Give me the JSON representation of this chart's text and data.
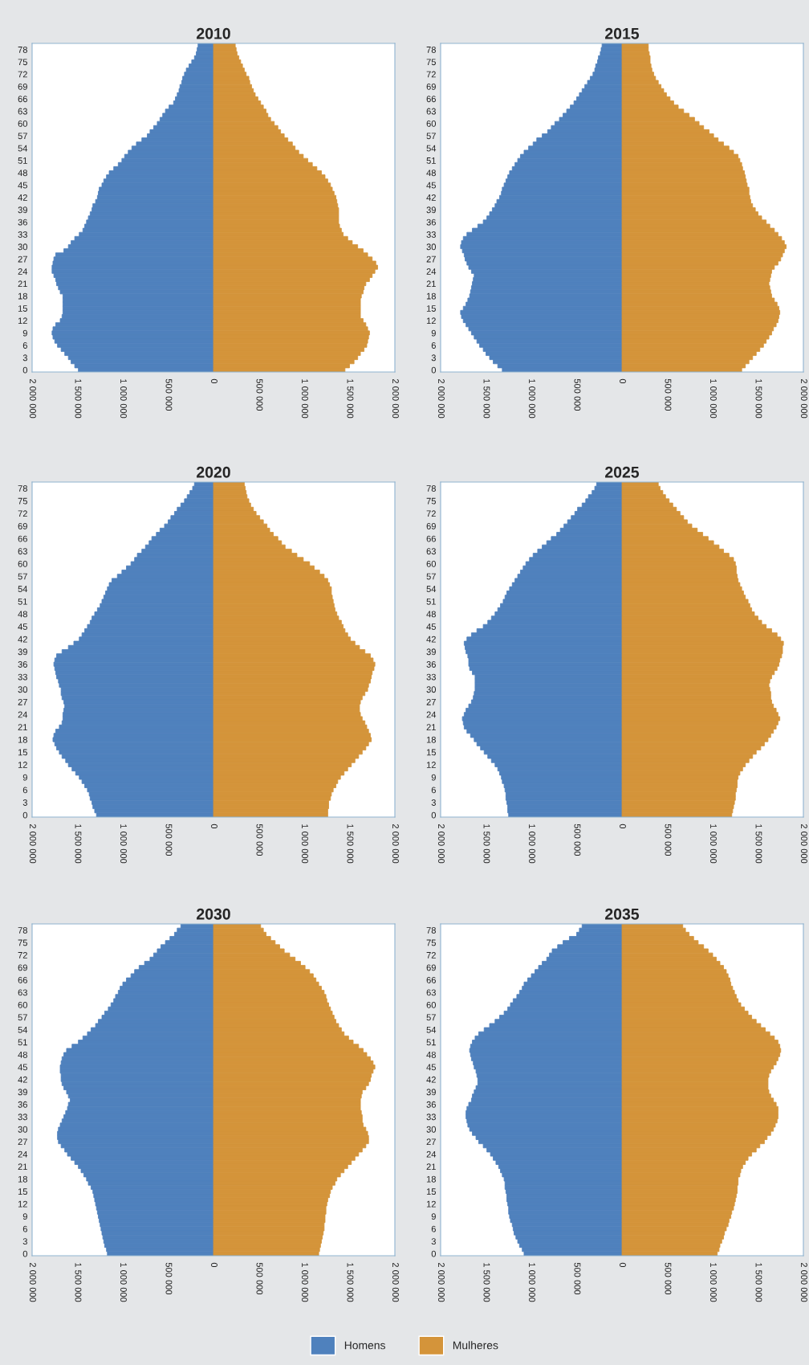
{
  "chart_data": [
    {
      "type": "bar",
      "title": "2010",
      "orientation": "horizontal",
      "stacked": true,
      "legend": "bottom",
      "categories": [
        null,
        "78",
        null,
        null,
        "75",
        null,
        null,
        "72",
        null,
        null,
        "69",
        null,
        null,
        "66",
        null,
        null,
        "63",
        null,
        null,
        "60",
        null,
        null,
        "57",
        null,
        null,
        "54",
        null,
        null,
        "51",
        null,
        null,
        "48",
        null,
        null,
        "45",
        null,
        null,
        "42",
        null,
        null,
        "39",
        null,
        null,
        "36",
        null,
        null,
        "33",
        null,
        null,
        "30",
        null,
        null,
        "27",
        null,
        null,
        "24",
        null,
        null,
        "21",
        null,
        null,
        "18",
        null,
        null,
        "15",
        null,
        null,
        "12",
        null,
        null,
        "9",
        null,
        null,
        "6",
        null,
        null,
        "3",
        null,
        null,
        "0"
      ],
      "xlim": [
        -2000000,
        2000000
      ],
      "xticks": [
        {
          "value": -2000000,
          "label": "2 000 000"
        },
        {
          "value": -1500000,
          "label": "1 500 000"
        },
        {
          "value": -1000000,
          "label": "1 000 000"
        },
        {
          "value": -500000,
          "label": "500 000"
        },
        0,
        {
          "value": 500000,
          "label": "500 000"
        },
        {
          "value": 1000000,
          "label": "1 000 000"
        },
        {
          "value": 1500000,
          "label": "1 500 000"
        },
        {
          "value": 2000000,
          "label": "2 000 000"
        }
      ],
      "series": [
        {
          "name": "Homens",
          "color": "#4f81bd",
          "values": [
            -170000,
            -180000,
            -190000,
            -210000,
            -240000,
            -270000,
            -300000,
            -320000,
            -340000,
            -350000,
            -370000,
            -380000,
            -400000,
            -420000,
            -440000,
            -490000,
            -530000,
            -560000,
            -590000,
            -620000,
            -660000,
            -700000,
            -730000,
            -790000,
            -850000,
            -900000,
            -940000,
            -980000,
            -1010000,
            -1050000,
            -1100000,
            -1150000,
            -1180000,
            -1210000,
            -1230000,
            -1260000,
            -1270000,
            -1280000,
            -1300000,
            -1330000,
            -1340000,
            -1360000,
            -1380000,
            -1400000,
            -1420000,
            -1440000,
            -1480000,
            -1530000,
            -1570000,
            -1600000,
            -1650000,
            -1740000,
            -1760000,
            -1770000,
            -1780000,
            -1780000,
            -1760000,
            -1740000,
            -1730000,
            -1710000,
            -1690000,
            -1660000,
            -1660000,
            -1660000,
            -1660000,
            -1660000,
            -1670000,
            -1690000,
            -1740000,
            -1770000,
            -1780000,
            -1770000,
            -1750000,
            -1720000,
            -1680000,
            -1640000,
            -1600000,
            -1570000,
            -1530000,
            -1490000
          ]
        },
        {
          "name": "Mulheres",
          "color": "#d4943a",
          "values": [
            240000,
            250000,
            260000,
            280000,
            300000,
            320000,
            340000,
            360000,
            390000,
            400000,
            420000,
            440000,
            460000,
            490000,
            520000,
            550000,
            580000,
            600000,
            630000,
            670000,
            710000,
            740000,
            780000,
            820000,
            870000,
            900000,
            940000,
            990000,
            1040000,
            1090000,
            1140000,
            1190000,
            1230000,
            1260000,
            1290000,
            1310000,
            1330000,
            1350000,
            1360000,
            1370000,
            1380000,
            1380000,
            1380000,
            1380000,
            1390000,
            1410000,
            1430000,
            1480000,
            1530000,
            1590000,
            1650000,
            1700000,
            1750000,
            1790000,
            1810000,
            1780000,
            1750000,
            1720000,
            1680000,
            1660000,
            1650000,
            1630000,
            1620000,
            1620000,
            1620000,
            1620000,
            1620000,
            1650000,
            1680000,
            1700000,
            1720000,
            1710000,
            1700000,
            1690000,
            1660000,
            1620000,
            1590000,
            1550000,
            1500000,
            1450000
          ]
        }
      ]
    },
    {
      "type": "bar",
      "title": "2015",
      "orientation": "horizontal",
      "stacked": true,
      "categories": [
        null,
        "78",
        null,
        null,
        "75",
        null,
        null,
        "72",
        null,
        null,
        "69",
        null,
        null,
        "66",
        null,
        null,
        "63",
        null,
        null,
        "60",
        null,
        null,
        "57",
        null,
        null,
        "54",
        null,
        null,
        "51",
        null,
        null,
        "48",
        null,
        null,
        "45",
        null,
        null,
        "42",
        null,
        null,
        "39",
        null,
        null,
        "36",
        null,
        null,
        "33",
        null,
        null,
        "30",
        null,
        null,
        "27",
        null,
        null,
        "24",
        null,
        null,
        "21",
        null,
        null,
        "18",
        null,
        null,
        "15",
        null,
        null,
        "12",
        null,
        null,
        "9",
        null,
        null,
        "6",
        null,
        null,
        "3",
        null,
        null,
        "0"
      ],
      "xlim": [
        -2000000,
        2000000
      ],
      "xticks": [
        {
          "value": -2000000,
          "label": "2 000 000"
        },
        {
          "value": -1500000,
          "label": "1 500 000"
        },
        {
          "value": -1000000,
          "label": "1 000 000"
        },
        {
          "value": -500000,
          "label": "500 000"
        },
        0,
        {
          "value": 500000,
          "label": "500 000"
        },
        {
          "value": 1000000,
          "label": "1 000 000"
        },
        {
          "value": 1500000,
          "label": "1 500 000"
        },
        {
          "value": 2000000,
          "label": "2 000 000"
        }
      ],
      "series": [
        {
          "color": "#4f81bd",
          "values": [
            -220000,
            -230000,
            -240000,
            -260000,
            -270000,
            -290000,
            -300000,
            -320000,
            -350000,
            -380000,
            -410000,
            -440000,
            -470000,
            -500000,
            -530000,
            -570000,
            -610000,
            -650000,
            -690000,
            -740000,
            -780000,
            -820000,
            -880000,
            -940000,
            -980000,
            -1030000,
            -1080000,
            -1120000,
            -1150000,
            -1180000,
            -1210000,
            -1240000,
            -1260000,
            -1280000,
            -1300000,
            -1320000,
            -1330000,
            -1350000,
            -1380000,
            -1400000,
            -1430000,
            -1460000,
            -1490000,
            -1530000,
            -1590000,
            -1650000,
            -1710000,
            -1750000,
            -1770000,
            -1780000,
            -1760000,
            -1740000,
            -1730000,
            -1710000,
            -1690000,
            -1660000,
            -1630000,
            -1640000,
            -1650000,
            -1660000,
            -1670000,
            -1680000,
            -1700000,
            -1720000,
            -1750000,
            -1780000,
            -1770000,
            -1750000,
            -1720000,
            -1690000,
            -1660000,
            -1630000,
            -1600000,
            -1570000,
            -1530000,
            -1500000,
            -1460000,
            -1420000,
            -1370000,
            -1320000
          ]
        },
        {
          "color": "#d4943a",
          "values": [
            290000,
            290000,
            300000,
            310000,
            310000,
            320000,
            330000,
            350000,
            370000,
            400000,
            430000,
            460000,
            490000,
            530000,
            570000,
            620000,
            680000,
            740000,
            800000,
            850000,
            900000,
            960000,
            1010000,
            1060000,
            1120000,
            1180000,
            1230000,
            1280000,
            1300000,
            1320000,
            1330000,
            1350000,
            1360000,
            1370000,
            1380000,
            1400000,
            1400000,
            1410000,
            1420000,
            1440000,
            1470000,
            1500000,
            1540000,
            1590000,
            1630000,
            1680000,
            1720000,
            1760000,
            1790000,
            1810000,
            1790000,
            1770000,
            1750000,
            1720000,
            1680000,
            1650000,
            1640000,
            1630000,
            1620000,
            1630000,
            1640000,
            1650000,
            1680000,
            1710000,
            1730000,
            1740000,
            1730000,
            1720000,
            1700000,
            1670000,
            1650000,
            1620000,
            1590000,
            1560000,
            1520000,
            1480000,
            1440000,
            1400000,
            1360000,
            1320000
          ]
        }
      ]
    },
    {
      "type": "bar",
      "title": "2020",
      "orientation": "horizontal",
      "stacked": true,
      "categories": [
        null,
        "78",
        null,
        null,
        "75",
        null,
        null,
        "72",
        null,
        null,
        "69",
        null,
        null,
        "66",
        null,
        null,
        "63",
        null,
        null,
        "60",
        null,
        null,
        "57",
        null,
        null,
        "54",
        null,
        null,
        "51",
        null,
        null,
        "48",
        null,
        null,
        "45",
        null,
        null,
        "42",
        null,
        null,
        "39",
        null,
        null,
        "36",
        null,
        null,
        "33",
        null,
        null,
        "30",
        null,
        null,
        "27",
        null,
        null,
        "24",
        null,
        null,
        "21",
        null,
        null,
        "18",
        null,
        null,
        "15",
        null,
        null,
        "12",
        null,
        null,
        "9",
        null,
        null,
        "6",
        null,
        null,
        "3",
        null,
        null,
        "0"
      ],
      "xlim": [
        -2000000,
        2000000
      ],
      "xticks": [
        {
          "value": -2000000,
          "label": "2 000 000"
        },
        {
          "value": -1500000,
          "label": "1 500 000"
        },
        {
          "value": -1000000,
          "label": "1 000 000"
        },
        {
          "value": -500000,
          "label": "500 000"
        },
        0,
        {
          "value": 500000,
          "label": "500 000"
        },
        {
          "value": 1000000,
          "label": "1 000 000"
        },
        {
          "value": 1500000,
          "label": "1 500 000"
        },
        {
          "value": 2000000,
          "label": "2 000 000"
        }
      ],
      "series": [
        {
          "color": "#4f81bd",
          "values": [
            -210000,
            -230000,
            -260000,
            -290000,
            -320000,
            -360000,
            -400000,
            -430000,
            -470000,
            -500000,
            -540000,
            -590000,
            -630000,
            -680000,
            -710000,
            -750000,
            -790000,
            -840000,
            -870000,
            -910000,
            -960000,
            -1010000,
            -1060000,
            -1120000,
            -1150000,
            -1170000,
            -1190000,
            -1210000,
            -1230000,
            -1250000,
            -1280000,
            -1310000,
            -1340000,
            -1360000,
            -1390000,
            -1420000,
            -1450000,
            -1480000,
            -1540000,
            -1600000,
            -1670000,
            -1730000,
            -1750000,
            -1760000,
            -1750000,
            -1740000,
            -1730000,
            -1710000,
            -1700000,
            -1680000,
            -1680000,
            -1670000,
            -1650000,
            -1640000,
            -1650000,
            -1660000,
            -1660000,
            -1670000,
            -1700000,
            -1740000,
            -1760000,
            -1770000,
            -1750000,
            -1730000,
            -1700000,
            -1670000,
            -1630000,
            -1600000,
            -1560000,
            -1520000,
            -1480000,
            -1450000,
            -1420000,
            -1390000,
            -1370000,
            -1360000,
            -1340000,
            -1330000,
            -1310000,
            -1290000
          ]
        },
        {
          "color": "#d4943a",
          "values": [
            340000,
            350000,
            360000,
            370000,
            390000,
            410000,
            440000,
            470000,
            510000,
            550000,
            590000,
            620000,
            660000,
            710000,
            750000,
            790000,
            860000,
            920000,
            990000,
            1060000,
            1110000,
            1170000,
            1220000,
            1260000,
            1280000,
            1300000,
            1300000,
            1310000,
            1320000,
            1330000,
            1340000,
            1360000,
            1380000,
            1410000,
            1430000,
            1450000,
            1480000,
            1510000,
            1560000,
            1610000,
            1670000,
            1730000,
            1760000,
            1780000,
            1770000,
            1750000,
            1740000,
            1730000,
            1710000,
            1700000,
            1670000,
            1640000,
            1620000,
            1610000,
            1610000,
            1620000,
            1640000,
            1670000,
            1690000,
            1710000,
            1730000,
            1740000,
            1710000,
            1680000,
            1640000,
            1600000,
            1560000,
            1520000,
            1480000,
            1440000,
            1400000,
            1370000,
            1350000,
            1320000,
            1300000,
            1290000,
            1270000,
            1270000,
            1260000,
            1260000
          ]
        }
      ]
    },
    {
      "type": "bar",
      "title": "2025",
      "orientation": "horizontal",
      "stacked": true,
      "categories": [
        null,
        "78",
        null,
        null,
        "75",
        null,
        null,
        "72",
        null,
        null,
        "69",
        null,
        null,
        "66",
        null,
        null,
        "63",
        null,
        null,
        "60",
        null,
        null,
        "57",
        null,
        null,
        "54",
        null,
        null,
        "51",
        null,
        null,
        "48",
        null,
        null,
        "45",
        null,
        null,
        "42",
        null,
        null,
        "39",
        null,
        null,
        "36",
        null,
        null,
        "33",
        null,
        null,
        "30",
        null,
        null,
        "27",
        null,
        null,
        "24",
        null,
        null,
        "21",
        null,
        null,
        "18",
        null,
        null,
        "15",
        null,
        null,
        "12",
        null,
        null,
        "9",
        null,
        null,
        "6",
        null,
        null,
        "3",
        null,
        null,
        "0"
      ],
      "xlim": [
        -2000000,
        2000000
      ],
      "xticks": [
        {
          "value": -2000000,
          "label": "2 000 000"
        },
        {
          "value": -1500000,
          "label": "1 500 000"
        },
        {
          "value": -1000000,
          "label": "1 000 000"
        },
        {
          "value": -500000,
          "label": "500 000"
        },
        0,
        {
          "value": 500000,
          "label": "500 000"
        },
        {
          "value": 1000000,
          "label": "1 000 000"
        },
        {
          "value": 1500000,
          "label": "1 500 000"
        },
        {
          "value": 2000000,
          "label": "2 000 000"
        }
      ],
      "series": [
        {
          "color": "#4f81bd",
          "values": [
            -280000,
            -300000,
            -330000,
            -370000,
            -400000,
            -440000,
            -490000,
            -520000,
            -560000,
            -600000,
            -640000,
            -680000,
            -720000,
            -780000,
            -830000,
            -880000,
            -930000,
            -980000,
            -1020000,
            -1060000,
            -1090000,
            -1120000,
            -1150000,
            -1180000,
            -1210000,
            -1240000,
            -1270000,
            -1290000,
            -1310000,
            -1340000,
            -1370000,
            -1400000,
            -1440000,
            -1480000,
            -1530000,
            -1600000,
            -1660000,
            -1710000,
            -1740000,
            -1730000,
            -1720000,
            -1700000,
            -1690000,
            -1690000,
            -1680000,
            -1650000,
            -1620000,
            -1620000,
            -1620000,
            -1620000,
            -1630000,
            -1640000,
            -1660000,
            -1690000,
            -1720000,
            -1740000,
            -1760000,
            -1750000,
            -1740000,
            -1710000,
            -1670000,
            -1630000,
            -1600000,
            -1560000,
            -1520000,
            -1480000,
            -1440000,
            -1400000,
            -1370000,
            -1350000,
            -1330000,
            -1320000,
            -1300000,
            -1290000,
            -1280000,
            -1280000,
            -1270000,
            -1260000,
            -1260000,
            -1250000
          ]
        },
        {
          "color": "#d4943a",
          "values": [
            400000,
            420000,
            450000,
            480000,
            520000,
            560000,
            600000,
            640000,
            680000,
            720000,
            770000,
            830000,
            890000,
            950000,
            1010000,
            1070000,
            1120000,
            1180000,
            1230000,
            1250000,
            1260000,
            1260000,
            1270000,
            1280000,
            1300000,
            1320000,
            1340000,
            1360000,
            1390000,
            1410000,
            1430000,
            1460000,
            1500000,
            1540000,
            1590000,
            1650000,
            1710000,
            1750000,
            1780000,
            1770000,
            1770000,
            1760000,
            1740000,
            1730000,
            1710000,
            1680000,
            1650000,
            1630000,
            1620000,
            1630000,
            1640000,
            1640000,
            1650000,
            1670000,
            1700000,
            1720000,
            1740000,
            1720000,
            1700000,
            1670000,
            1640000,
            1610000,
            1570000,
            1530000,
            1480000,
            1440000,
            1400000,
            1360000,
            1330000,
            1300000,
            1280000,
            1270000,
            1270000,
            1260000,
            1250000,
            1250000,
            1240000,
            1230000,
            1220000,
            1210000
          ]
        }
      ]
    },
    {
      "type": "bar",
      "title": "2030",
      "orientation": "horizontal",
      "stacked": true,
      "categories": [
        null,
        "78",
        null,
        null,
        "75",
        null,
        null,
        "72",
        null,
        null,
        "69",
        null,
        null,
        "66",
        null,
        null,
        "63",
        null,
        null,
        "60",
        null,
        null,
        "57",
        null,
        null,
        "54",
        null,
        null,
        "51",
        null,
        null,
        "48",
        null,
        null,
        "45",
        null,
        null,
        "42",
        null,
        null,
        "39",
        null,
        null,
        "36",
        null,
        null,
        "33",
        null,
        null,
        "30",
        null,
        null,
        "27",
        null,
        null,
        "24",
        null,
        null,
        "21",
        null,
        null,
        "18",
        null,
        null,
        "15",
        null,
        null,
        "12",
        null,
        null,
        "9",
        null,
        null,
        "6",
        null,
        null,
        "3",
        null,
        null,
        "0"
      ],
      "xlim": [
        -2000000,
        2000000
      ],
      "xticks": [
        {
          "value": -2000000,
          "label": "2 000 000"
        },
        {
          "value": -1500000,
          "label": "1 500 000"
        },
        {
          "value": -1000000,
          "label": "1 000 000"
        },
        {
          "value": -500000,
          "label": "500 000"
        },
        0,
        {
          "value": 500000,
          "label": "500 000"
        },
        {
          "value": 1000000,
          "label": "1 000 000"
        },
        {
          "value": 1500000,
          "label": "1 500 000"
        },
        {
          "value": 2000000,
          "label": "2 000 000"
        }
      ],
      "series": [
        {
          "color": "#4f81bd",
          "values": [
            -360000,
            -400000,
            -430000,
            -480000,
            -530000,
            -580000,
            -620000,
            -660000,
            -700000,
            -760000,
            -820000,
            -870000,
            -910000,
            -960000,
            -1000000,
            -1030000,
            -1050000,
            -1080000,
            -1100000,
            -1130000,
            -1160000,
            -1200000,
            -1230000,
            -1270000,
            -1300000,
            -1350000,
            -1390000,
            -1440000,
            -1490000,
            -1560000,
            -1620000,
            -1650000,
            -1670000,
            -1680000,
            -1690000,
            -1690000,
            -1680000,
            -1680000,
            -1670000,
            -1650000,
            -1620000,
            -1600000,
            -1580000,
            -1600000,
            -1610000,
            -1630000,
            -1650000,
            -1670000,
            -1690000,
            -1710000,
            -1720000,
            -1720000,
            -1710000,
            -1680000,
            -1640000,
            -1610000,
            -1570000,
            -1530000,
            -1490000,
            -1460000,
            -1430000,
            -1400000,
            -1380000,
            -1350000,
            -1330000,
            -1320000,
            -1310000,
            -1300000,
            -1290000,
            -1280000,
            -1270000,
            -1260000,
            -1250000,
            -1240000,
            -1230000,
            -1220000,
            -1210000,
            -1200000,
            -1180000,
            -1170000
          ]
        },
        {
          "color": "#d4943a",
          "values": [
            520000,
            550000,
            580000,
            630000,
            680000,
            730000,
            780000,
            840000,
            900000,
            960000,
            1010000,
            1060000,
            1100000,
            1130000,
            1160000,
            1190000,
            1220000,
            1240000,
            1250000,
            1270000,
            1290000,
            1310000,
            1330000,
            1350000,
            1380000,
            1410000,
            1440000,
            1490000,
            1540000,
            1600000,
            1650000,
            1690000,
            1730000,
            1760000,
            1780000,
            1760000,
            1740000,
            1730000,
            1710000,
            1680000,
            1640000,
            1630000,
            1620000,
            1620000,
            1620000,
            1630000,
            1640000,
            1640000,
            1650000,
            1680000,
            1700000,
            1710000,
            1710000,
            1680000,
            1640000,
            1600000,
            1560000,
            1520000,
            1480000,
            1440000,
            1400000,
            1360000,
            1340000,
            1310000,
            1290000,
            1280000,
            1260000,
            1250000,
            1240000,
            1240000,
            1230000,
            1230000,
            1220000,
            1220000,
            1210000,
            1200000,
            1190000,
            1180000,
            1170000,
            1160000
          ]
        }
      ]
    },
    {
      "type": "bar",
      "title": "2035",
      "orientation": "horizontal",
      "stacked": true,
      "categories": [
        null,
        "78",
        null,
        null,
        "75",
        null,
        null,
        "72",
        null,
        null,
        "69",
        null,
        null,
        "66",
        null,
        null,
        "63",
        null,
        null,
        "60",
        null,
        null,
        "57",
        null,
        null,
        "54",
        null,
        null,
        "51",
        null,
        null,
        "48",
        null,
        null,
        "45",
        null,
        null,
        "42",
        null,
        null,
        "39",
        null,
        null,
        "36",
        null,
        null,
        "33",
        null,
        null,
        "30",
        null,
        null,
        "27",
        null,
        null,
        "24",
        null,
        null,
        "21",
        null,
        null,
        "18",
        null,
        null,
        "15",
        null,
        null,
        "12",
        null,
        null,
        "9",
        null,
        null,
        "6",
        null,
        null,
        "3",
        null,
        null,
        "0"
      ],
      "xlim": [
        -2000000,
        2000000
      ],
      "xticks": [
        {
          "value": -2000000,
          "label": "2 000 000"
        },
        {
          "value": -1500000,
          "label": "1 500 000"
        },
        {
          "value": -1000000,
          "label": "1 000 000"
        },
        {
          "value": -500000,
          "label": "500 000"
        },
        0,
        {
          "value": 500000,
          "label": "500 000"
        },
        {
          "value": 1000000,
          "label": "1 000 000"
        },
        {
          "value": 1500000,
          "label": "1 500 000"
        },
        {
          "value": 2000000,
          "label": "2 000 000"
        }
      ],
      "series": [
        {
          "color": "#4f81bd",
          "values": [
            -440000,
            -470000,
            -500000,
            -580000,
            -650000,
            -710000,
            -770000,
            -800000,
            -830000,
            -880000,
            -920000,
            -960000,
            -1000000,
            -1040000,
            -1080000,
            -1100000,
            -1130000,
            -1160000,
            -1200000,
            -1230000,
            -1260000,
            -1300000,
            -1350000,
            -1400000,
            -1460000,
            -1520000,
            -1580000,
            -1620000,
            -1650000,
            -1670000,
            -1680000,
            -1670000,
            -1660000,
            -1640000,
            -1630000,
            -1610000,
            -1600000,
            -1590000,
            -1590000,
            -1610000,
            -1630000,
            -1650000,
            -1660000,
            -1690000,
            -1710000,
            -1720000,
            -1720000,
            -1710000,
            -1700000,
            -1680000,
            -1650000,
            -1610000,
            -1580000,
            -1530000,
            -1490000,
            -1450000,
            -1420000,
            -1390000,
            -1360000,
            -1340000,
            -1320000,
            -1300000,
            -1290000,
            -1290000,
            -1280000,
            -1270000,
            -1270000,
            -1260000,
            -1250000,
            -1250000,
            -1240000,
            -1230000,
            -1210000,
            -1200000,
            -1190000,
            -1170000,
            -1150000,
            -1130000,
            -1100000,
            -1080000
          ]
        },
        {
          "color": "#d4943a",
          "values": [
            670000,
            700000,
            740000,
            790000,
            840000,
            900000,
            950000,
            1000000,
            1040000,
            1080000,
            1120000,
            1150000,
            1170000,
            1190000,
            1200000,
            1220000,
            1240000,
            1260000,
            1280000,
            1310000,
            1350000,
            1390000,
            1430000,
            1480000,
            1530000,
            1580000,
            1630000,
            1680000,
            1720000,
            1740000,
            1750000,
            1740000,
            1720000,
            1700000,
            1670000,
            1640000,
            1620000,
            1610000,
            1610000,
            1610000,
            1620000,
            1640000,
            1670000,
            1700000,
            1720000,
            1720000,
            1720000,
            1710000,
            1690000,
            1670000,
            1640000,
            1600000,
            1570000,
            1520000,
            1480000,
            1430000,
            1390000,
            1360000,
            1330000,
            1310000,
            1300000,
            1280000,
            1280000,
            1270000,
            1270000,
            1260000,
            1250000,
            1240000,
            1230000,
            1210000,
            1200000,
            1180000,
            1170000,
            1150000,
            1130000,
            1120000,
            1100000,
            1080000,
            1070000,
            1050000
          ]
        }
      ]
    }
  ]
}
